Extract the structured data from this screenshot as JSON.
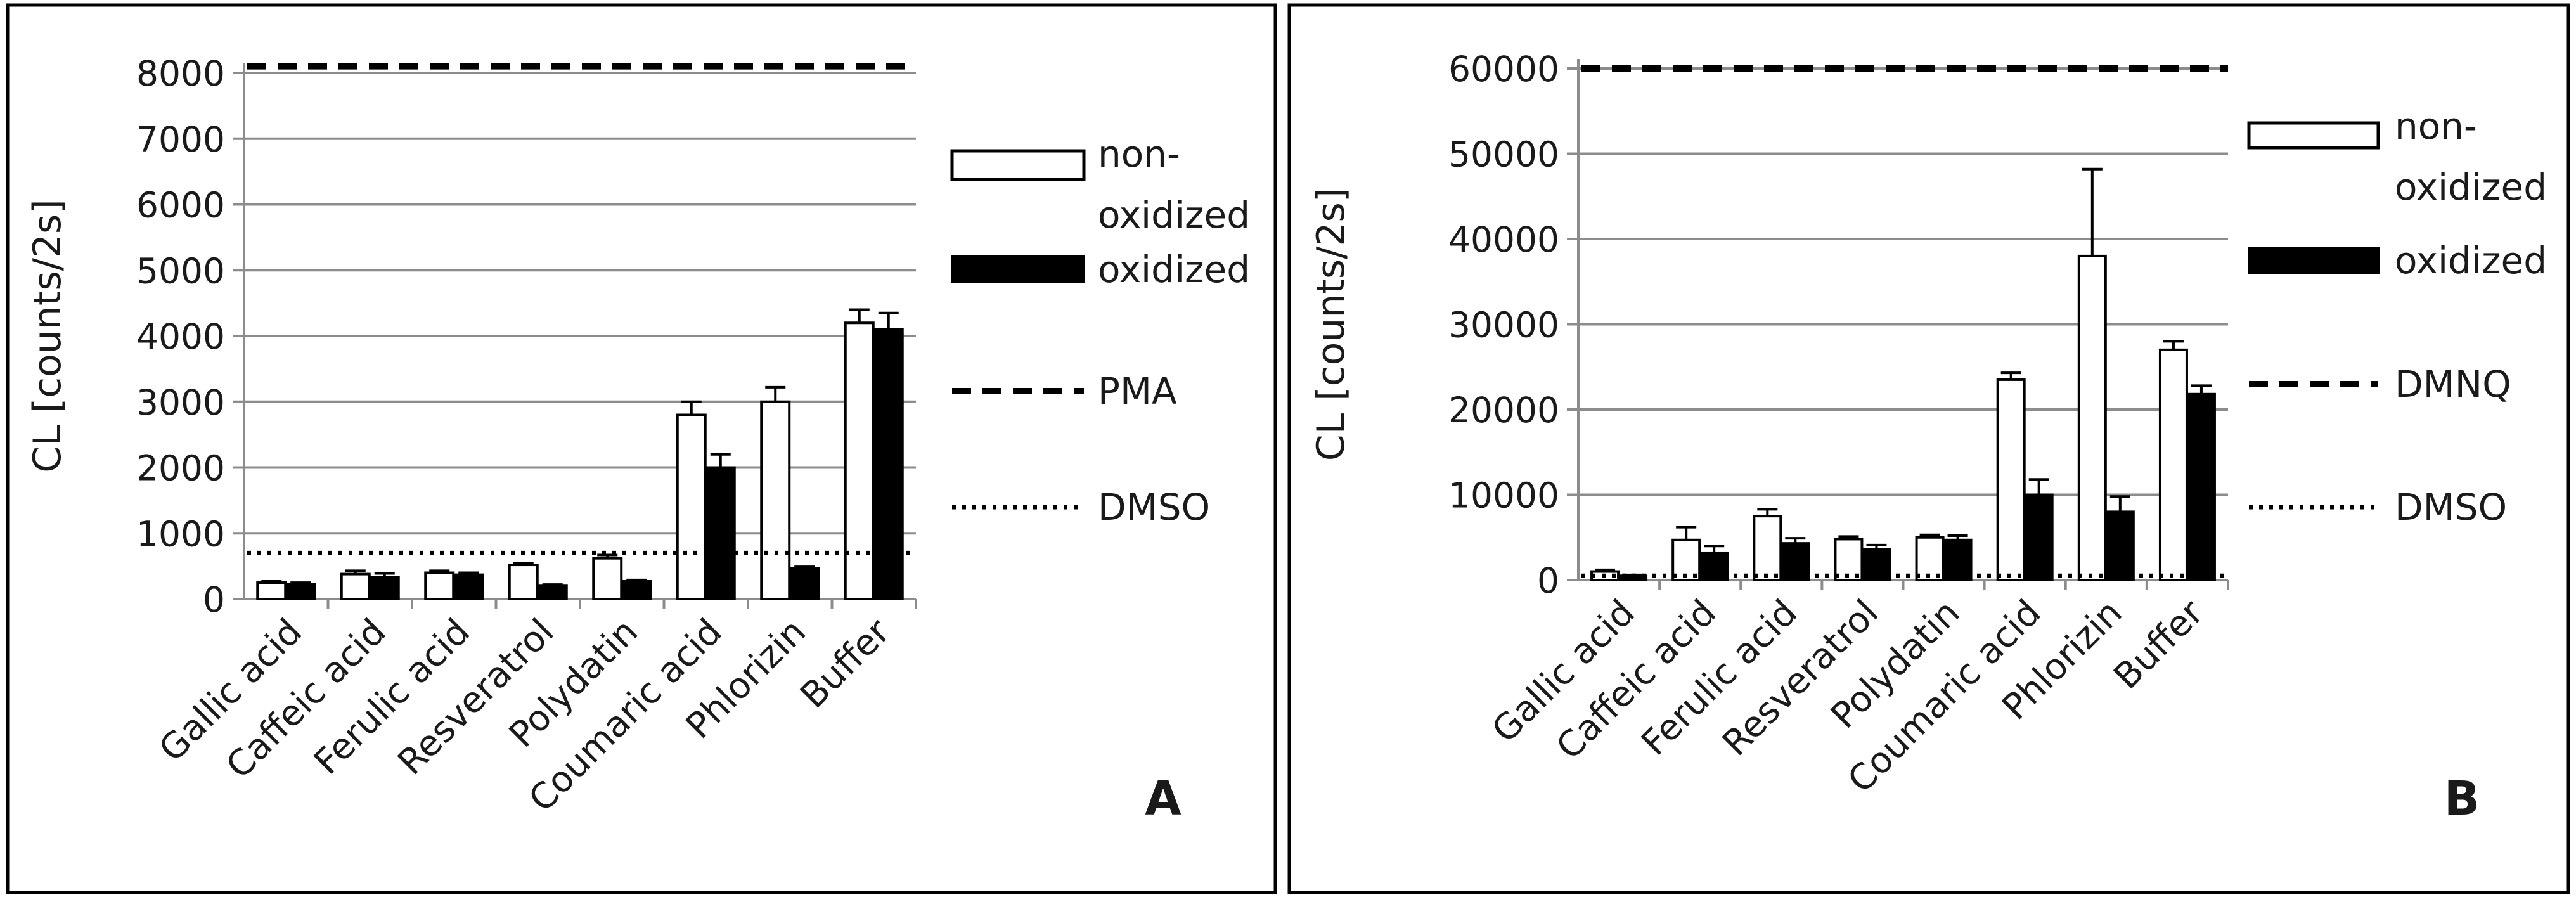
{
  "chart_data": [
    {
      "type": "bar",
      "panel_label": "A",
      "title": "",
      "xlabel": "",
      "ylabel": "CL [counts/2s]",
      "ylim": [
        0,
        8000
      ],
      "yticks": [
        "0",
        "1000",
        "2000",
        "3000",
        "4000",
        "5000",
        "6000",
        "7000",
        "8000"
      ],
      "grid": true,
      "legend_position": "right",
      "categories": [
        "Gallic acid",
        "Caffeic acid",
        "Ferulic acid",
        "Resveratrol",
        "Polydatin",
        "Coumaric acid",
        "Phlorizin",
        "Buffer"
      ],
      "series": [
        {
          "name": "non-oxidized",
          "label_lines": [
            "non-",
            "oxidized"
          ],
          "fill": "#ffffff",
          "values": [
            250,
            380,
            400,
            520,
            620,
            2800,
            3000,
            4200
          ],
          "errors": [
            20,
            50,
            30,
            20,
            50,
            200,
            220,
            200
          ]
        },
        {
          "name": "oxidized",
          "label_lines": [
            "oxidized"
          ],
          "fill": "#000000",
          "values": [
            230,
            330,
            370,
            200,
            270,
            2000,
            470,
            4100
          ],
          "errors": [
            20,
            60,
            30,
            20,
            20,
            200,
            20,
            250
          ]
        }
      ],
      "reference_lines": [
        {
          "name": "PMA",
          "value": 8100,
          "style": "dashed"
        },
        {
          "name": "DMSO",
          "value": 700,
          "style": "dotted"
        }
      ]
    },
    {
      "type": "bar",
      "panel_label": "B",
      "title": "",
      "xlabel": "",
      "ylabel": "CL [counts/2s]",
      "ylim": [
        0,
        60000
      ],
      "yticks": [
        "0",
        "10000",
        "20000",
        "30000",
        "40000",
        "50000",
        "60000"
      ],
      "grid": true,
      "legend_position": "right",
      "categories": [
        "Gallic acid",
        "Caffeic acid",
        "Ferulic acid",
        "Resveratrol",
        "Polydatin",
        "Coumaric acid",
        "Phlorizin",
        "Buffer"
      ],
      "series": [
        {
          "name": "non-oxidized",
          "label_lines": [
            "non-",
            "oxidized"
          ],
          "fill": "#ffffff",
          "values": [
            1000,
            4700,
            7500,
            4800,
            5000,
            23500,
            38000,
            27000
          ],
          "errors": [
            200,
            1500,
            800,
            300,
            300,
            800,
            10200,
            1000
          ]
        },
        {
          "name": "oxidized",
          "label_lines": [
            "oxidized"
          ],
          "fill": "#000000",
          "values": [
            500,
            3200,
            4300,
            3600,
            4700,
            10000,
            8000,
            21800
          ],
          "errors": [
            100,
            800,
            600,
            500,
            500,
            1800,
            1800,
            1000
          ]
        }
      ],
      "reference_lines": [
        {
          "name": "DMNQ",
          "value": 60000,
          "style": "dashed"
        },
        {
          "name": "DMSO",
          "value": 500,
          "style": "dotted"
        }
      ]
    }
  ]
}
